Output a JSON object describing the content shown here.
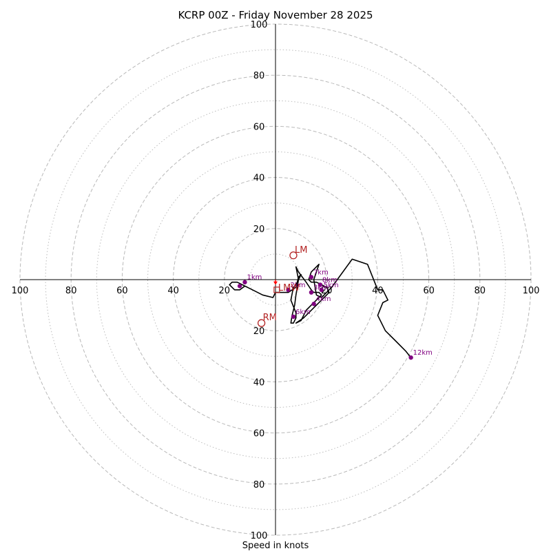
{
  "chart_data": {
    "type": "hodograph",
    "title": "KCRP 00Z - Friday November 28 2025",
    "xlabel": "Speed in knots",
    "range": 100,
    "ring_major": [
      20,
      40,
      60,
      80,
      100
    ],
    "ring_minor": [
      10,
      30,
      50,
      70,
      90
    ],
    "tick_labels": [
      "20",
      "40",
      "60",
      "80",
      "100"
    ],
    "hodograph_color": "#000000",
    "marker_color": "#800080",
    "motion_color": "#b22222",
    "trace": [
      [
        -11,
        -3
      ],
      [
        -15,
        -1
      ],
      [
        -17,
        -1
      ],
      [
        -18,
        -2
      ],
      [
        -16,
        -4
      ],
      [
        -14,
        -4
      ],
      [
        -12,
        -2.5
      ],
      [
        -9,
        -4
      ],
      [
        -5,
        -6
      ],
      [
        -1,
        -7
      ],
      [
        0,
        -5
      ],
      [
        2,
        -5
      ],
      [
        5,
        -5
      ],
      [
        8,
        -3
      ],
      [
        9,
        1
      ],
      [
        10,
        2
      ],
      [
        9,
        0
      ],
      [
        8,
        -2
      ],
      [
        7,
        -3
      ],
      [
        6,
        -8
      ],
      [
        8,
        -13
      ],
      [
        8,
        -15
      ],
      [
        7,
        -17
      ],
      [
        6,
        -17
      ],
      [
        6.5,
        -14
      ],
      [
        7.5,
        -10
      ],
      [
        8,
        -6
      ],
      [
        9,
        0
      ],
      [
        8,
        5
      ],
      [
        9,
        3
      ],
      [
        12,
        -1
      ],
      [
        14,
        -4
      ],
      [
        15,
        -5
      ],
      [
        17,
        -5
      ],
      [
        18,
        -6
      ],
      [
        16,
        -8
      ],
      [
        14,
        -10
      ],
      [
        12,
        -12
      ],
      [
        10,
        -16
      ],
      [
        8,
        -17
      ],
      [
        11,
        -15
      ],
      [
        13,
        -13
      ],
      [
        15,
        -11
      ],
      [
        18,
        -8
      ],
      [
        20,
        -6
      ],
      [
        21,
        -5
      ],
      [
        20,
        -3
      ],
      [
        18,
        -2
      ],
      [
        16,
        -1
      ],
      [
        14,
        -1
      ],
      [
        13,
        0
      ],
      [
        14,
        3
      ],
      [
        17,
        6
      ],
      [
        15,
        0
      ],
      [
        16,
        -6
      ],
      [
        18,
        -7
      ],
      [
        20,
        -5
      ],
      [
        22,
        -3
      ],
      [
        30,
        8
      ],
      [
        36,
        6
      ],
      [
        40,
        -4
      ],
      [
        42,
        -4
      ],
      [
        44,
        -8
      ],
      [
        42,
        -9
      ],
      [
        40,
        -14
      ],
      [
        43,
        -20
      ],
      [
        47,
        -24
      ],
      [
        51,
        -28
      ],
      [
        53,
        -30.5
      ]
    ],
    "height_markers": [
      {
        "label": "1km",
        "u": -12,
        "v": -1
      },
      {
        "label": "2km",
        "u": 5,
        "v": -4
      },
      {
        "label": "3km",
        "u": 14,
        "v": -5
      },
      {
        "label": "4km",
        "u": 15,
        "v": -9.5
      },
      {
        "label": "5km",
        "u": 18,
        "v": -4
      },
      {
        "label": "6km",
        "u": 7,
        "v": -14.5
      },
      {
        "label": "7km",
        "u": 14,
        "v": 1
      },
      {
        "label": "8km",
        "u": 17.5,
        "v": -2
      },
      {
        "label": "12km",
        "u": 53,
        "v": -30.5
      }
    ],
    "extra_points": [
      {
        "u": -14,
        "v": -2.5
      }
    ],
    "storm_motion": [
      {
        "label": "LM",
        "u": 7,
        "v": 9.5,
        "marker": "circle"
      },
      {
        "label": "RM",
        "u": -5.5,
        "v": -17,
        "marker": "circle"
      },
      {
        "label": "LMW",
        "u": 0.5,
        "v": -4,
        "marker": "square"
      }
    ],
    "mean_wind_arrow": {
      "u": 0,
      "v": -1.5
    }
  }
}
